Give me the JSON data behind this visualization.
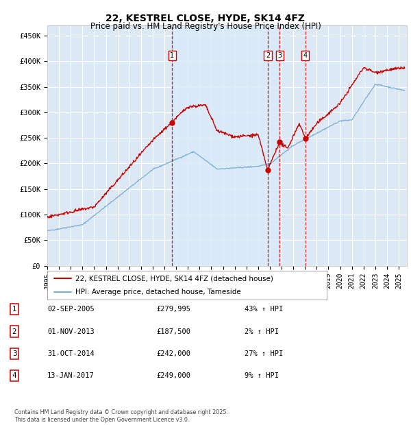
{
  "title": "22, KESTREL CLOSE, HYDE, SK14 4FZ",
  "subtitle": "Price paid vs. HM Land Registry's House Price Index (HPI)",
  "ylim": [
    0,
    470000
  ],
  "yticks": [
    0,
    50000,
    100000,
    150000,
    200000,
    250000,
    300000,
    350000,
    400000,
    450000
  ],
  "ytick_labels": [
    "£0",
    "£50K",
    "£100K",
    "£150K",
    "£200K",
    "£250K",
    "£300K",
    "£350K",
    "£400K",
    "£450K"
  ],
  "xlim_start": 1995.0,
  "xlim_end": 2025.7,
  "plot_bg_color": "#dce9f5",
  "grid_color": "#ffffff",
  "red_line_color": "#cc0000",
  "blue_line_color": "#7bafd4",
  "shade_color": "#daeaf8",
  "transactions": [
    {
      "id": 1,
      "year": 2005.67,
      "price": 279995
    },
    {
      "id": 2,
      "year": 2013.83,
      "price": 187500
    },
    {
      "id": 3,
      "year": 2014.83,
      "price": 242000
    },
    {
      "id": 4,
      "year": 2017.04,
      "price": 249000
    }
  ],
  "legend_line1": "22, KESTREL CLOSE, HYDE, SK14 4FZ (detached house)",
  "legend_line2": "HPI: Average price, detached house, Tameside",
  "table_rows": [
    {
      "id": 1,
      "date": "02-SEP-2005",
      "price": "£279,995",
      "pct": "43% ↑ HPI"
    },
    {
      "id": 2,
      "date": "01-NOV-2013",
      "price": "£187,500",
      "pct": "2% ↑ HPI"
    },
    {
      "id": 3,
      "date": "31-OCT-2014",
      "price": "£242,000",
      "pct": "27% ↑ HPI"
    },
    {
      "id": 4,
      "date": "13-JAN-2017",
      "price": "£249,000",
      "pct": "9% ↑ HPI"
    }
  ],
  "footer": "Contains HM Land Registry data © Crown copyright and database right 2025.\nThis data is licensed under the Open Government Licence v3.0."
}
